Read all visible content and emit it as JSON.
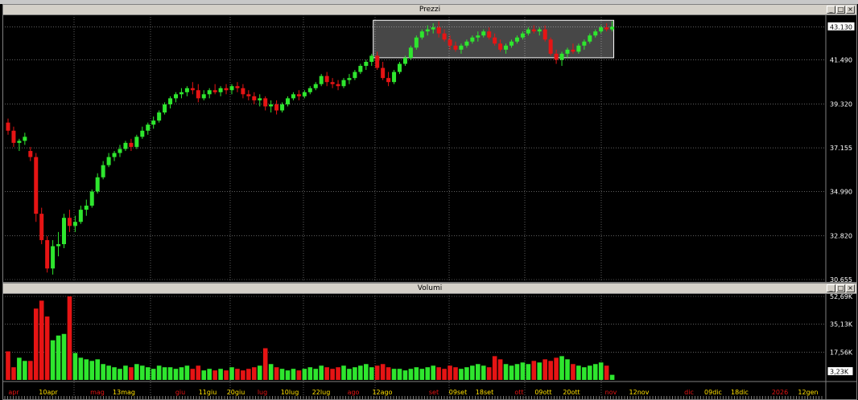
{
  "window": {
    "min_label": "_",
    "max_label": "□",
    "close_label": "×"
  },
  "price_panel": {
    "title": "Prezzi",
    "y_ticks": [
      "43.130",
      "41.490",
      "39.320",
      "37.155",
      "34.990",
      "32.820",
      "30.655"
    ],
    "last_price": "43.130",
    "colors": {
      "up": "#2ee62e",
      "down": "#e61414",
      "grid": "#9a9a9a",
      "highlight": "#ffffff"
    }
  },
  "volume_panel": {
    "title": "Volumi",
    "y_ticks": [
      "52,69K",
      "35,13K",
      "17,56K"
    ],
    "last_volume": "3,23K"
  },
  "date_axis": [
    {
      "label": "apr",
      "color": "red"
    },
    {
      "label": "10apr",
      "color": "yellow"
    },
    {
      "label": "mag",
      "color": "red"
    },
    {
      "label": "13mag",
      "color": "yellow"
    },
    {
      "label": "giu",
      "color": "red"
    },
    {
      "label": "11giu",
      "color": "yellow"
    },
    {
      "label": "20giu",
      "color": "yellow"
    },
    {
      "label": "lug",
      "color": "red"
    },
    {
      "label": "10lug",
      "color": "yellow"
    },
    {
      "label": "22lug",
      "color": "yellow"
    },
    {
      "label": "ago",
      "color": "red"
    },
    {
      "label": "12ago",
      "color": "yellow"
    },
    {
      "label": "set",
      "color": "red"
    },
    {
      "label": "09set",
      "color": "yellow"
    },
    {
      "label": "18set",
      "color": "yellow"
    },
    {
      "label": "ott",
      "color": "red"
    },
    {
      "label": "09ott",
      "color": "yellow"
    },
    {
      "label": "20ott",
      "color": "yellow"
    },
    {
      "label": "nov",
      "color": "red"
    },
    {
      "label": "12nov",
      "color": "yellow"
    },
    {
      "label": "dic",
      "color": "red"
    },
    {
      "label": "09dic",
      "color": "yellow"
    },
    {
      "label": "18dic",
      "color": "yellow"
    },
    {
      "label": "2026",
      "color": "red"
    },
    {
      "label": "12gen",
      "color": "yellow"
    }
  ],
  "chart_data": {
    "type": "candlestick",
    "ylim": [
      30.655,
      43.5
    ],
    "y_ticks": [
      43.13,
      41.49,
      39.32,
      37.155,
      34.99,
      32.82,
      30.655
    ],
    "volume_ylim": [
      0,
      52690
    ],
    "candles": [
      [
        38.4,
        38.6,
        37.8,
        38.0,
        18000
      ],
      [
        38.0,
        38.2,
        37.2,
        37.4,
        8000
      ],
      [
        37.4,
        37.6,
        37.0,
        37.5,
        14000
      ],
      [
        37.5,
        37.9,
        37.3,
        37.7,
        12000
      ],
      [
        37.0,
        37.2,
        36.5,
        36.7,
        12000
      ],
      [
        36.7,
        36.9,
        33.5,
        33.9,
        45000
      ],
      [
        33.9,
        34.2,
        32.4,
        32.6,
        50000
      ],
      [
        32.6,
        32.8,
        31.0,
        31.2,
        40000
      ],
      [
        31.2,
        32.6,
        30.9,
        32.3,
        25000
      ],
      [
        32.3,
        33.0,
        31.8,
        32.4,
        28000
      ],
      [
        32.4,
        33.9,
        32.2,
        33.7,
        29000
      ],
      [
        33.7,
        34.1,
        33.0,
        33.3,
        52690
      ],
      [
        33.3,
        33.8,
        33.0,
        33.5,
        17000
      ],
      [
        33.5,
        34.3,
        33.4,
        34.1,
        14000
      ],
      [
        34.1,
        34.6,
        33.8,
        34.3,
        13000
      ],
      [
        34.3,
        35.1,
        34.2,
        35.0,
        12000
      ],
      [
        35.0,
        35.9,
        34.9,
        35.7,
        13000
      ],
      [
        35.7,
        36.5,
        35.6,
        36.3,
        10000
      ],
      [
        36.3,
        36.9,
        36.2,
        36.7,
        9000
      ],
      [
        36.7,
        37.0,
        36.5,
        36.9,
        8000
      ],
      [
        36.9,
        37.3,
        36.7,
        37.1,
        7000
      ],
      [
        37.1,
        37.5,
        37.0,
        37.4,
        9000
      ],
      [
        37.4,
        37.6,
        37.0,
        37.2,
        8000
      ],
      [
        37.2,
        37.8,
        37.1,
        37.7,
        10000
      ],
      [
        37.7,
        38.2,
        37.6,
        38.0,
        9000
      ],
      [
        38.0,
        38.4,
        37.8,
        38.3,
        8000
      ],
      [
        38.3,
        38.7,
        38.1,
        38.5,
        7000
      ],
      [
        38.5,
        39.0,
        38.4,
        38.9,
        9000
      ],
      [
        38.9,
        39.4,
        38.8,
        39.3,
        8000
      ],
      [
        39.3,
        39.7,
        39.1,
        39.6,
        8000
      ],
      [
        39.6,
        39.9,
        39.4,
        39.8,
        7000
      ],
      [
        39.8,
        40.1,
        39.6,
        39.9,
        8000
      ],
      [
        39.9,
        40.2,
        39.7,
        40.1,
        9000
      ],
      [
        40.1,
        40.4,
        39.8,
        40.0,
        7000
      ],
      [
        40.0,
        40.3,
        39.4,
        39.6,
        9000
      ],
      [
        39.6,
        40.0,
        39.5,
        39.8,
        6000
      ],
      [
        39.8,
        40.1,
        39.6,
        40.0,
        7000
      ],
      [
        40.0,
        40.3,
        39.8,
        39.9,
        6000
      ],
      [
        39.9,
        40.2,
        39.7,
        40.1,
        7000
      ],
      [
        40.1,
        40.3,
        39.8,
        40.0,
        6000
      ],
      [
        40.0,
        40.3,
        39.8,
        40.2,
        8000
      ],
      [
        40.2,
        40.4,
        39.9,
        40.1,
        7000
      ],
      [
        40.1,
        40.3,
        39.6,
        39.8,
        6000
      ],
      [
        39.8,
        40.0,
        39.5,
        39.7,
        7000
      ],
      [
        39.7,
        39.9,
        39.3,
        39.5,
        8000
      ],
      [
        39.5,
        39.8,
        39.2,
        39.6,
        9000
      ],
      [
        39.6,
        39.7,
        39.0,
        39.2,
        20000
      ],
      [
        39.2,
        39.5,
        38.9,
        39.3,
        10000
      ],
      [
        39.3,
        39.5,
        38.8,
        39.0,
        8000
      ],
      [
        39.0,
        39.4,
        38.9,
        39.3,
        7000
      ],
      [
        39.3,
        39.7,
        39.2,
        39.6,
        6000
      ],
      [
        39.6,
        39.9,
        39.5,
        39.8,
        7000
      ],
      [
        39.8,
        40.0,
        39.5,
        39.7,
        6000
      ],
      [
        39.7,
        40.0,
        39.6,
        39.9,
        7000
      ],
      [
        39.9,
        40.2,
        39.8,
        40.1,
        8000
      ],
      [
        40.1,
        40.4,
        40.0,
        40.3,
        7000
      ],
      [
        40.3,
        40.8,
        40.2,
        40.7,
        9000
      ],
      [
        40.7,
        40.9,
        40.2,
        40.4,
        8000
      ],
      [
        40.4,
        40.6,
        40.1,
        40.3,
        7000
      ],
      [
        40.3,
        40.5,
        40.0,
        40.2,
        8000
      ],
      [
        40.2,
        40.6,
        40.1,
        40.5,
        9000
      ],
      [
        40.5,
        40.8,
        40.3,
        40.6,
        7000
      ],
      [
        40.6,
        41.0,
        40.5,
        40.9,
        8000
      ],
      [
        40.9,
        41.3,
        40.8,
        41.2,
        9000
      ],
      [
        41.2,
        41.5,
        41.0,
        41.4,
        10000
      ],
      [
        41.4,
        41.8,
        41.2,
        41.7,
        8000
      ],
      [
        41.7,
        41.9,
        41.0,
        41.1,
        9000
      ],
      [
        41.1,
        41.4,
        40.5,
        40.6,
        10000
      ],
      [
        40.6,
        40.9,
        40.2,
        40.4,
        8000
      ],
      [
        40.4,
        41.0,
        40.3,
        40.9,
        7000
      ],
      [
        40.9,
        41.4,
        40.8,
        41.3,
        7000
      ],
      [
        41.3,
        41.7,
        41.2,
        41.6,
        6000
      ],
      [
        41.6,
        42.2,
        41.5,
        42.1,
        7000
      ],
      [
        42.1,
        42.7,
        42.0,
        42.6,
        8000
      ],
      [
        42.6,
        43.0,
        42.5,
        42.9,
        7000
      ],
      [
        42.9,
        43.2,
        42.7,
        43.0,
        8000
      ],
      [
        43.0,
        43.3,
        42.8,
        43.1,
        9000
      ],
      [
        43.1,
        43.4,
        42.6,
        42.8,
        8000
      ],
      [
        42.8,
        43.0,
        42.4,
        42.5,
        7000
      ],
      [
        42.5,
        42.7,
        42.0,
        42.2,
        9000
      ],
      [
        42.2,
        42.4,
        41.9,
        42.0,
        8000
      ],
      [
        42.0,
        42.3,
        41.8,
        42.2,
        7000
      ],
      [
        42.2,
        42.5,
        42.1,
        42.4,
        8000
      ],
      [
        42.4,
        42.7,
        42.3,
        42.6,
        9000
      ],
      [
        42.6,
        42.9,
        42.4,
        42.7,
        10000
      ],
      [
        42.7,
        43.0,
        42.6,
        42.9,
        9000
      ],
      [
        42.9,
        43.1,
        42.5,
        42.6,
        8000
      ],
      [
        42.6,
        42.8,
        42.2,
        42.3,
        15000
      ],
      [
        42.3,
        42.5,
        41.9,
        42.0,
        13000
      ],
      [
        42.0,
        42.3,
        41.8,
        42.2,
        10000
      ],
      [
        42.2,
        42.5,
        42.1,
        42.4,
        9000
      ],
      [
        42.4,
        42.7,
        42.3,
        42.6,
        10000
      ],
      [
        42.6,
        42.9,
        42.5,
        42.8,
        11000
      ],
      [
        42.8,
        43.1,
        42.7,
        43.0,
        10000
      ],
      [
        43.0,
        43.2,
        42.8,
        42.9,
        12000
      ],
      [
        42.9,
        43.1,
        42.7,
        43.0,
        11000
      ],
      [
        43.0,
        43.2,
        42.4,
        42.5,
        13000
      ],
      [
        42.5,
        42.6,
        41.7,
        41.8,
        12000
      ],
      [
        41.8,
        42.0,
        41.3,
        41.5,
        14000
      ],
      [
        41.5,
        41.9,
        41.2,
        41.8,
        15000
      ],
      [
        41.8,
        42.1,
        41.6,
        42.0,
        13000
      ],
      [
        42.0,
        42.3,
        41.8,
        41.9,
        10000
      ],
      [
        41.9,
        42.3,
        41.8,
        42.2,
        9000
      ],
      [
        42.2,
        42.5,
        42.0,
        42.4,
        8000
      ],
      [
        42.4,
        42.8,
        42.3,
        42.7,
        9000
      ],
      [
        42.7,
        43.0,
        42.6,
        42.9,
        10000
      ],
      [
        42.9,
        43.2,
        42.8,
        43.1,
        11000
      ],
      [
        43.1,
        43.3,
        42.9,
        43.0,
        9000
      ],
      [
        43.0,
        43.4,
        42.9,
        43.13,
        3230
      ]
    ]
  }
}
